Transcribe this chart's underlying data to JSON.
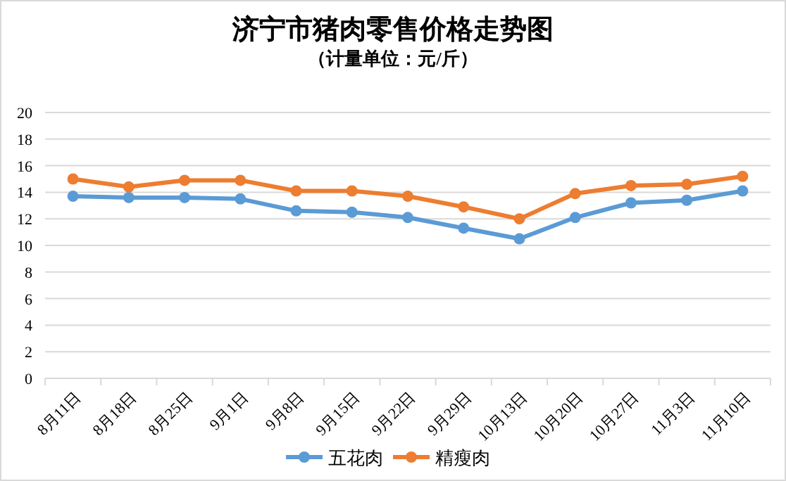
{
  "chart_data": {
    "type": "line",
    "title": "济宁市猪肉零售价格走势图",
    "subtitle": "（计量单位：元/斤）",
    "categories": [
      "8月11日",
      "8月18日",
      "8月25日",
      "9月1日",
      "9月8日",
      "9月15日",
      "9月22日",
      "9月29日",
      "10月13日",
      "10月20日",
      "10月27日",
      "11月3日",
      "11月10日"
    ],
    "series": [
      {
        "name": "五花肉",
        "color": "#5b9bd5",
        "values": [
          13.7,
          13.6,
          13.6,
          13.5,
          12.6,
          12.5,
          12.1,
          11.3,
          10.5,
          12.1,
          13.2,
          13.4,
          14.1
        ]
      },
      {
        "name": "精瘦肉",
        "color": "#ed7d31",
        "values": [
          15.0,
          14.4,
          14.9,
          14.9,
          14.1,
          14.1,
          13.7,
          12.9,
          12.0,
          13.9,
          14.5,
          14.6,
          15.2
        ]
      }
    ],
    "ylim": [
      0,
      20
    ],
    "yticks": [
      0,
      2,
      4,
      6,
      8,
      10,
      12,
      14,
      16,
      18,
      20
    ],
    "grid": "y",
    "legend": "bottom",
    "marker": "circle",
    "line_style": "solid"
  }
}
